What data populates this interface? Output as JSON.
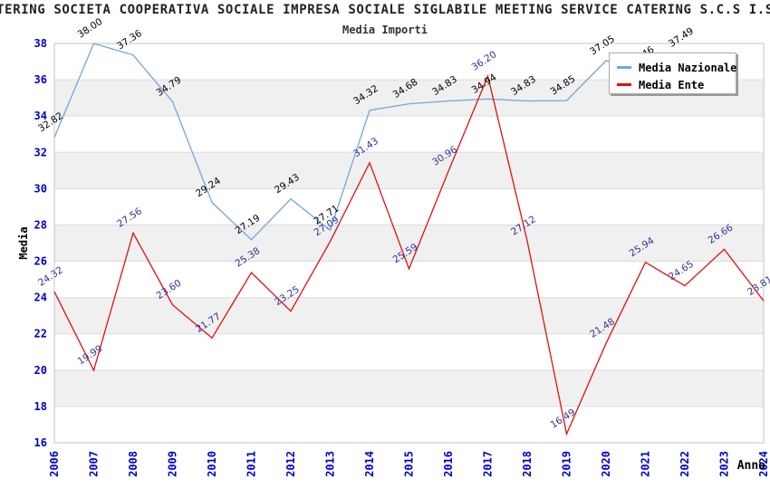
{
  "title": "TERING SOCIETA COOPERATIVA SOCIALE IMPRESA SOCIALE SIGLABILE MEETING SERVICE CATERING S.C.S I.S",
  "subtitle": "Media Importi",
  "axes": {
    "y_label": "Media",
    "x_label": "Anno",
    "y_ticks": [
      38,
      36,
      34,
      32,
      30,
      28,
      26,
      24,
      22,
      20,
      18,
      16
    ],
    "x_ticks": [
      "2006",
      "2007",
      "2008",
      "2009",
      "2010",
      "2011",
      "2012",
      "2013",
      "2014",
      "2015",
      "2016",
      "2017",
      "2018",
      "2019",
      "2020",
      "2021",
      "2022",
      "2023",
      "2024"
    ],
    "tick_color": "#0000cc",
    "axis_title_color": "#000000"
  },
  "legend": {
    "items": [
      {
        "label": "Media Nazionale",
        "color": "#74a4dd"
      },
      {
        "label": "Media Ente",
        "color": "#e01010"
      }
    ]
  },
  "chart_data": {
    "type": "line",
    "title": "Media Importi",
    "xlabel": "Anno",
    "ylabel": "Media",
    "x": [
      2006,
      2007,
      2008,
      2009,
      2010,
      2011,
      2012,
      2013,
      2014,
      2015,
      2016,
      2017,
      2018,
      2019,
      2020,
      2021,
      2022,
      2023,
      2024
    ],
    "ylim": [
      16,
      38
    ],
    "grid": true,
    "band_color": "#f0f0f0",
    "gridline_color": "#dcdcdc",
    "border_color": "#c4c4c4",
    "legend_position": "top-right",
    "series": [
      {
        "name": "Media Nazionale",
        "color": "#74a4dd",
        "label_color": "#000000",
        "points": [
          {
            "x": 2006,
            "v": 32.82,
            "label": "32.82"
          },
          {
            "x": 2007,
            "v": 38.0,
            "label": "38.00"
          },
          {
            "x": 2008,
            "v": 37.36,
            "label": "37.36"
          },
          {
            "x": 2009,
            "v": 34.79,
            "label": "34.79"
          },
          {
            "x": 2010,
            "v": 29.24,
            "label": "29.24"
          },
          {
            "x": 2011,
            "v": 27.19,
            "label": "27.19"
          },
          {
            "x": 2012,
            "v": 29.43,
            "label": "29.43"
          },
          {
            "x": 2013,
            "v": 27.71,
            "label": "27.71"
          },
          {
            "x": 2014,
            "v": 34.32,
            "label": "34.32"
          },
          {
            "x": 2015,
            "v": 34.68,
            "label": "34.68"
          },
          {
            "x": 2016,
            "v": 34.83,
            "label": "34.83"
          },
          {
            "x": 2017,
            "v": 34.94,
            "label": "34.94"
          },
          {
            "x": 2018,
            "v": 34.83,
            "label": "34.83"
          },
          {
            "x": 2019,
            "v": 34.85,
            "label": "34.85"
          },
          {
            "x": 2020,
            "v": 37.05,
            "label": "37.05"
          },
          {
            "x": 2021,
            "v": 36.46,
            "label": "36.46"
          },
          {
            "x": 2022,
            "v": 37.49,
            "label": "37.49"
          }
        ]
      },
      {
        "name": "Media Ente",
        "color": "#e01010",
        "label_color": "#333399",
        "points": [
          {
            "x": 2006,
            "v": 24.32,
            "label": "24.32"
          },
          {
            "x": 2007,
            "v": 19.99,
            "label": "19.99"
          },
          {
            "x": 2008,
            "v": 27.56,
            "label": "27.56"
          },
          {
            "x": 2009,
            "v": 23.6,
            "label": "23.60"
          },
          {
            "x": 2010,
            "v": 21.77,
            "label": "21.77"
          },
          {
            "x": 2011,
            "v": 25.38,
            "label": "25.38"
          },
          {
            "x": 2012,
            "v": 23.25,
            "label": "23.25"
          },
          {
            "x": 2013,
            "v": 27.09,
            "label": "27.09"
          },
          {
            "x": 2014,
            "v": 31.43,
            "label": "31.43"
          },
          {
            "x": 2015,
            "v": 25.59,
            "label": "25.59"
          },
          {
            "x": 2016,
            "v": 30.96,
            "label": "30.96"
          },
          {
            "x": 2017,
            "v": 36.2,
            "label": "36.20"
          },
          {
            "x": 2018,
            "v": 27.12,
            "label": "27.12"
          },
          {
            "x": 2019,
            "v": 16.49,
            "label": "16.49"
          },
          {
            "x": 2020,
            "v": 21.48,
            "label": "21.48"
          },
          {
            "x": 2021,
            "v": 25.94,
            "label": "25.94"
          },
          {
            "x": 2022,
            "v": 24.65,
            "label": "24.65"
          },
          {
            "x": 2023,
            "v": 26.66,
            "label": "26.66"
          },
          {
            "x": 2024,
            "v": 23.81,
            "label": "23.81"
          }
        ]
      }
    ]
  }
}
